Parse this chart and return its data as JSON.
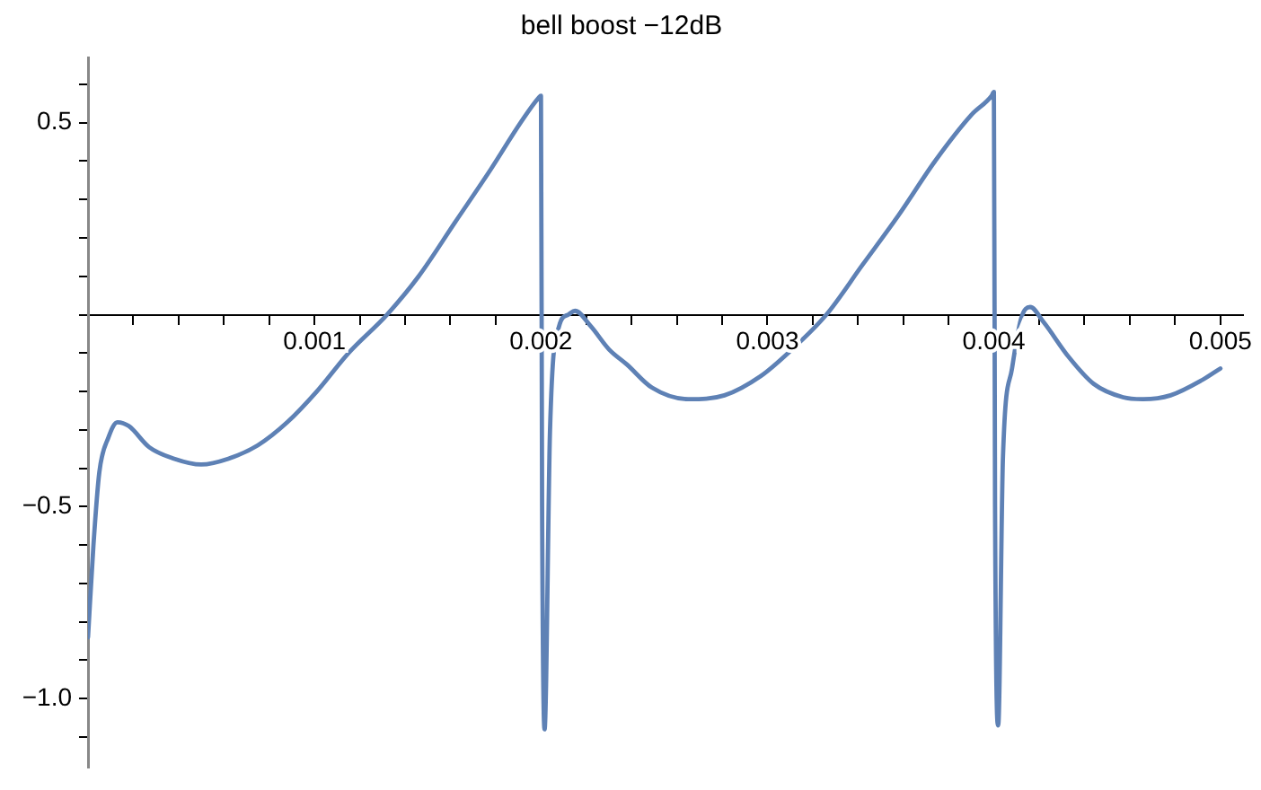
{
  "chart_data": {
    "type": "line",
    "title": "bell boost −12dB",
    "x": [
      0,
      2.4e-05,
      5e-05,
      9e-05,
      0.00013,
      0.00018,
      0.00027,
      0.00038,
      0.0005,
      0.00062,
      0.00075,
      0.00088,
      0.00101,
      0.00115,
      0.00132,
      0.00146,
      0.00162,
      0.00178,
      0.00191,
      0.00199,
      0.002,
      0.002005,
      0.002016,
      0.00204,
      0.00208,
      0.00212,
      0.00215,
      0.00222,
      0.0023,
      0.00238,
      0.00249,
      0.00265,
      0.00281,
      0.00297,
      0.0031,
      0.00326,
      0.00342,
      0.00358,
      0.00374,
      0.0039,
      0.00399,
      0.004,
      0.004005,
      0.004019,
      0.00404,
      0.00408,
      0.00412,
      0.00416,
      0.00422,
      0.00433,
      0.00444,
      0.00457,
      0.00466,
      0.00478,
      0.00492,
      0.005
    ],
    "series": [
      {
        "color": "#5e81b5",
        "values": [
          -0.84,
          -0.6,
          -0.41,
          -0.32,
          -0.28,
          -0.29,
          -0.345,
          -0.375,
          -0.39,
          -0.375,
          -0.34,
          -0.28,
          -0.2,
          -0.1,
          0,
          0.1,
          0.24,
          0.38,
          0.5,
          0.565,
          0.57,
          -0.5,
          -1.08,
          -0.3,
          -0.03,
          0,
          0.01,
          -0.03,
          -0.09,
          -0.13,
          -0.19,
          -0.22,
          -0.21,
          -0.16,
          -0.095,
          0,
          0.13,
          0.26,
          0.4,
          0.52,
          0.57,
          0.58,
          -0.5,
          -1.07,
          -0.37,
          -0.14,
          -0.01,
          0.02,
          -0.02,
          -0.11,
          -0.18,
          -0.215,
          -0.22,
          -0.21,
          -0.17,
          -0.14
        ]
      }
    ],
    "xlim": [
      0,
      0.0051
    ],
    "ylim": [
      -1.18,
      0.67
    ],
    "xticks": [
      {
        "value": 0,
        "label": null
      },
      {
        "value": 0.0002,
        "label": null
      },
      {
        "value": 0.0004,
        "label": null
      },
      {
        "value": 0.0006,
        "label": null
      },
      {
        "value": 0.0008,
        "label": null
      },
      0.001,
      {
        "value": 0.0012,
        "label": null
      },
      {
        "value": 0.0014,
        "label": null
      },
      {
        "value": 0.0016,
        "label": null
      },
      {
        "value": 0.0018,
        "label": null
      },
      0.002,
      {
        "value": 0.0022,
        "label": null
      },
      {
        "value": 0.0024,
        "label": null
      },
      {
        "value": 0.0026,
        "label": null
      },
      {
        "value": 0.0028,
        "label": null
      },
      0.003,
      {
        "value": 0.0032,
        "label": null
      },
      {
        "value": 0.0034,
        "label": null
      },
      {
        "value": 0.0036,
        "label": null
      },
      {
        "value": 0.0038,
        "label": null
      },
      0.004,
      {
        "value": 0.0042,
        "label": null
      },
      {
        "value": 0.0044,
        "label": null
      },
      {
        "value": 0.0046,
        "label": null
      },
      {
        "value": 0.0048,
        "label": null
      },
      0.005
    ],
    "yticks": [
      {
        "value": -1.1,
        "label": null
      },
      {
        "value": -1.0,
        "label": "−1.0"
      },
      {
        "value": -0.9,
        "label": null
      },
      {
        "value": -0.8,
        "label": null
      },
      {
        "value": -0.7,
        "label": null
      },
      {
        "value": -0.6,
        "label": null
      },
      {
        "value": -0.5,
        "label": "−0.5"
      },
      {
        "value": -0.4,
        "label": null
      },
      {
        "value": -0.3,
        "label": null
      },
      {
        "value": -0.2,
        "label": null
      },
      {
        "value": -0.1,
        "label": null
      },
      {
        "value": 0,
        "label": null
      },
      {
        "value": 0.1,
        "label": null
      },
      {
        "value": 0.2,
        "label": null
      },
      {
        "value": 0.3,
        "label": null
      },
      {
        "value": 0.4,
        "label": null
      },
      0.5,
      {
        "value": 0.6,
        "label": null
      }
    ],
    "grid": false,
    "legend": false,
    "marker": "none",
    "line_style": "solid"
  }
}
